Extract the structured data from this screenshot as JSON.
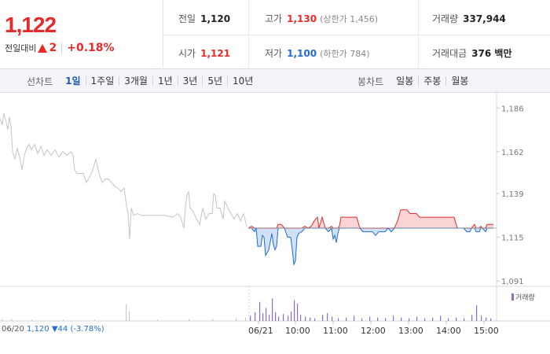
{
  "summary": {
    "current_price": "1,122",
    "change_label": "전일대비",
    "change_value": "2",
    "change_percent": "+0.18%",
    "stats": {
      "prev_close_label": "전일",
      "prev_close": "1,120",
      "high_label": "고가",
      "high": "1,130",
      "upper_limit": "(상한가 1,456)",
      "volume_label": "거래량",
      "volume": "337,944",
      "open_label": "시가",
      "open": "1,121",
      "low_label": "저가",
      "low": "1,100",
      "lower_limit": "(하한가 784)",
      "turnover_label": "거래대금",
      "turnover": "376 백만"
    },
    "colors": {
      "up": "#e52a2a",
      "down": "#1f6bd6"
    }
  },
  "toolbar": {
    "line_label": "선차트",
    "line_periods": [
      "1일",
      "1주일",
      "3개월",
      "1년",
      "3년",
      "5년",
      "10년"
    ],
    "active_period": "1일",
    "candle_label": "봉차트",
    "candle_periods": [
      "일봉",
      "주봉",
      "월봉"
    ]
  },
  "chart_data": {
    "type": "line",
    "baseline": 1120,
    "ylim": [
      1088,
      1190
    ],
    "y_ticks": [
      "1,186",
      "1,162",
      "1,139",
      "1,115",
      "1,091"
    ],
    "x_labels": [
      "06/20",
      "06/21",
      "10:00",
      "11:00",
      "12:00",
      "13:00",
      "14:00",
      "15:00"
    ],
    "prev_day": {
      "date": "06/20",
      "close": "1,120",
      "change": "▼44 (-3.78%)"
    },
    "volume_legend": "거래량",
    "prev_day_series": [
      [
        0,
        1180
      ],
      [
        3,
        1177
      ],
      [
        5,
        1183
      ],
      [
        8,
        1178
      ],
      [
        10,
        1174
      ],
      [
        12,
        1181
      ],
      [
        14,
        1176
      ],
      [
        16,
        1162
      ],
      [
        19,
        1158
      ],
      [
        22,
        1164
      ],
      [
        25,
        1159
      ],
      [
        28,
        1152
      ],
      [
        31,
        1160
      ],
      [
        34,
        1164
      ],
      [
        37,
        1166
      ],
      [
        40,
        1163
      ],
      [
        44,
        1166
      ],
      [
        48,
        1161
      ],
      [
        52,
        1165
      ],
      [
        56,
        1160
      ],
      [
        60,
        1163
      ],
      [
        65,
        1160
      ],
      [
        70,
        1163
      ],
      [
        75,
        1159
      ],
      [
        80,
        1162
      ],
      [
        85,
        1160
      ],
      [
        90,
        1162
      ],
      [
        93,
        1160
      ],
      [
        95,
        1152
      ],
      [
        98,
        1150
      ],
      [
        102,
        1150
      ],
      [
        106,
        1150
      ],
      [
        110,
        1145
      ],
      [
        114,
        1148
      ],
      [
        118,
        1152
      ],
      [
        122,
        1158
      ],
      [
        126,
        1150
      ],
      [
        130,
        1145
      ],
      [
        134,
        1147
      ],
      [
        138,
        1147
      ],
      [
        142,
        1145
      ],
      [
        146,
        1143
      ],
      [
        150,
        1142
      ],
      [
        154,
        1140
      ],
      [
        158,
        1142
      ],
      [
        161,
        1132
      ],
      [
        163,
        1128
      ],
      [
        165,
        1114
      ],
      [
        167,
        1131
      ],
      [
        170,
        1127
      ],
      [
        175,
        1128
      ],
      [
        180,
        1127
      ],
      [
        190,
        1127
      ],
      [
        200,
        1127
      ],
      [
        210,
        1127
      ],
      [
        220,
        1126
      ],
      [
        226,
        1128
      ],
      [
        230,
        1126
      ],
      [
        234,
        1120
      ],
      [
        236,
        1132
      ],
      [
        238,
        1138
      ],
      [
        240,
        1140
      ],
      [
        242,
        1131
      ],
      [
        246,
        1129
      ],
      [
        250,
        1125
      ],
      [
        254,
        1122
      ],
      [
        258,
        1131
      ],
      [
        262,
        1125
      ],
      [
        266,
        1128
      ],
      [
        270,
        1128
      ],
      [
        272,
        1139
      ],
      [
        274,
        1138
      ],
      [
        276,
        1131
      ],
      [
        280,
        1131
      ],
      [
        284,
        1125
      ],
      [
        286,
        1135
      ],
      [
        290,
        1131
      ],
      [
        294,
        1128
      ],
      [
        298,
        1125
      ],
      [
        302,
        1128
      ],
      [
        306,
        1124
      ],
      [
        310,
        1128
      ],
      [
        314,
        1121
      ]
    ],
    "today_series": [
      [
        316,
        1120
      ],
      [
        320,
        1121
      ],
      [
        324,
        1118
      ],
      [
        326,
        1120
      ],
      [
        328,
        1110
      ],
      [
        332,
        1110
      ],
      [
        334,
        1116
      ],
      [
        336,
        1115
      ],
      [
        338,
        1105
      ],
      [
        342,
        1108
      ],
      [
        346,
        1117
      ],
      [
        348,
        1111
      ],
      [
        350,
        1108
      ],
      [
        352,
        1110
      ],
      [
        354,
        1122
      ],
      [
        358,
        1122
      ],
      [
        362,
        1120
      ],
      [
        366,
        1115
      ],
      [
        370,
        1115
      ],
      [
        372,
        1108
      ],
      [
        374,
        1100
      ],
      [
        376,
        1102
      ],
      [
        378,
        1115
      ],
      [
        380,
        1117
      ],
      [
        384,
        1118
      ],
      [
        388,
        1121
      ],
      [
        392,
        1120
      ],
      [
        396,
        1121
      ],
      [
        400,
        1124
      ],
      [
        404,
        1126
      ],
      [
        406,
        1120
      ],
      [
        408,
        1123
      ],
      [
        410,
        1126
      ],
      [
        414,
        1120
      ],
      [
        418,
        1118
      ],
      [
        422,
        1121
      ],
      [
        424,
        1114
      ],
      [
        426,
        1116
      ],
      [
        428,
        1112
      ],
      [
        430,
        1117
      ],
      [
        432,
        1121
      ],
      [
        434,
        1126
      ],
      [
        438,
        1126
      ],
      [
        442,
        1126
      ],
      [
        446,
        1126
      ],
      [
        450,
        1126
      ],
      [
        454,
        1126
      ],
      [
        458,
        1120
      ],
      [
        462,
        1118
      ],
      [
        466,
        1118
      ],
      [
        470,
        1118
      ],
      [
        474,
        1118
      ],
      [
        478,
        1116
      ],
      [
        482,
        1118
      ],
      [
        486,
        1118
      ],
      [
        490,
        1118
      ],
      [
        494,
        1120
      ],
      [
        498,
        1118
      ],
      [
        502,
        1120
      ],
      [
        506,
        1124
      ],
      [
        510,
        1130
      ],
      [
        514,
        1130
      ],
      [
        518,
        1130
      ],
      [
        522,
        1128
      ],
      [
        526,
        1128
      ],
      [
        530,
        1128
      ],
      [
        534,
        1126
      ],
      [
        538,
        1126
      ],
      [
        542,
        1126
      ],
      [
        546,
        1126
      ],
      [
        550,
        1126
      ],
      [
        554,
        1126
      ],
      [
        558,
        1126
      ],
      [
        562,
        1126
      ],
      [
        566,
        1126
      ],
      [
        570,
        1126
      ],
      [
        574,
        1126
      ],
      [
        578,
        1126
      ],
      [
        582,
        1120
      ],
      [
        586,
        1120
      ],
      [
        590,
        1120
      ],
      [
        594,
        1118
      ],
      [
        598,
        1118
      ],
      [
        600,
        1120
      ],
      [
        604,
        1122
      ],
      [
        606,
        1118
      ],
      [
        610,
        1118
      ],
      [
        612,
        1121
      ],
      [
        614,
        1120
      ],
      [
        618,
        1118
      ],
      [
        620,
        1122
      ],
      [
        624,
        1122
      ],
      [
        628,
        1122
      ]
    ],
    "volume_bars": [
      [
        2,
        4
      ],
      [
        14,
        5
      ],
      [
        40,
        3
      ],
      [
        80,
        3
      ],
      [
        120,
        3
      ],
      [
        160,
        38
      ],
      [
        164,
        22
      ],
      [
        200,
        3
      ],
      [
        240,
        4
      ],
      [
        270,
        5
      ],
      [
        300,
        6
      ],
      [
        312,
        8
      ],
      [
        318,
        12
      ],
      [
        324,
        20
      ],
      [
        330,
        44
      ],
      [
        334,
        18
      ],
      [
        338,
        30
      ],
      [
        342,
        14
      ],
      [
        346,
        52
      ],
      [
        350,
        20
      ],
      [
        354,
        10
      ],
      [
        360,
        16
      ],
      [
        366,
        12
      ],
      [
        370,
        22
      ],
      [
        374,
        48
      ],
      [
        378,
        40
      ],
      [
        382,
        14
      ],
      [
        388,
        10
      ],
      [
        394,
        8
      ],
      [
        400,
        6
      ],
      [
        410,
        14
      ],
      [
        416,
        18
      ],
      [
        422,
        10
      ],
      [
        430,
        6
      ],
      [
        440,
        8
      ],
      [
        450,
        12
      ],
      [
        460,
        6
      ],
      [
        470,
        10
      ],
      [
        480,
        8
      ],
      [
        490,
        6
      ],
      [
        500,
        12
      ],
      [
        510,
        8
      ],
      [
        520,
        6
      ],
      [
        530,
        10
      ],
      [
        540,
        6
      ],
      [
        550,
        8
      ],
      [
        560,
        12
      ],
      [
        570,
        6
      ],
      [
        580,
        8
      ],
      [
        590,
        6
      ],
      [
        600,
        14
      ],
      [
        606,
        36
      ],
      [
        612,
        12
      ],
      [
        618,
        8
      ],
      [
        624,
        6
      ]
    ]
  }
}
